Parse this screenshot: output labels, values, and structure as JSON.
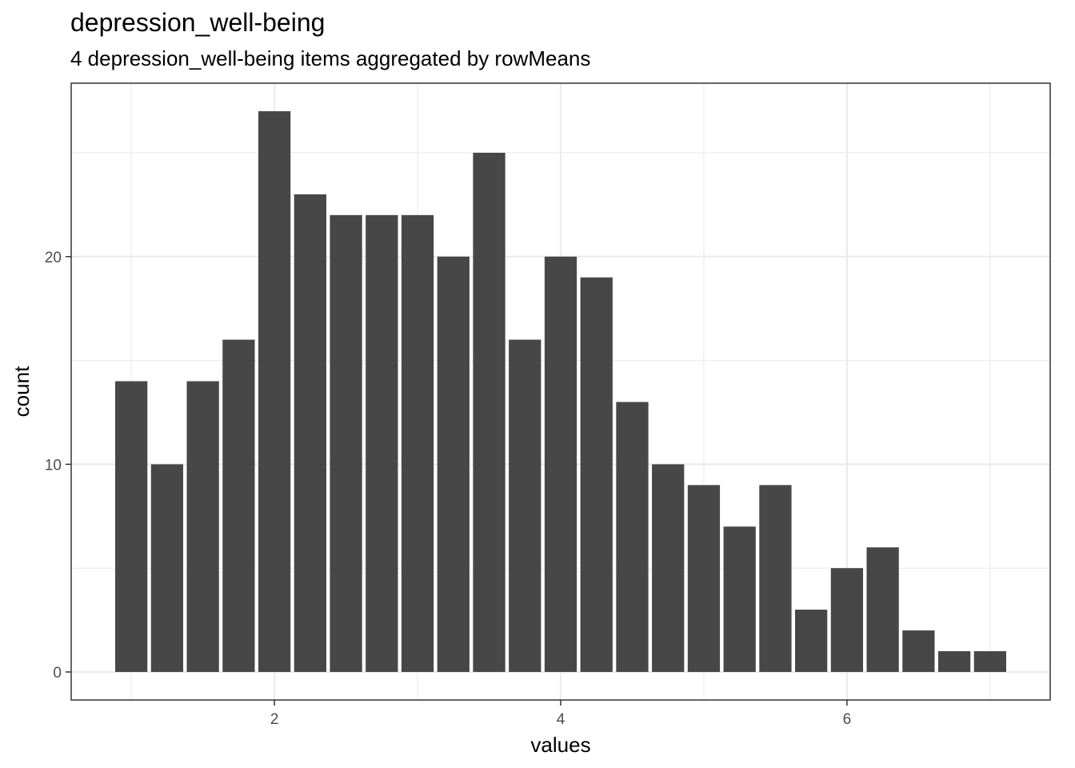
{
  "title": "depression_well-being",
  "subtitle": "4 depression_well-being items aggregated by rowMeans",
  "chart_data": {
    "type": "bar",
    "title": "depression_well-being",
    "subtitle": "4 depression_well-being items aggregated by rowMeans",
    "xlabel": "values",
    "ylabel": "count",
    "x": [
      1.0,
      1.25,
      1.5,
      1.75,
      2.0,
      2.25,
      2.5,
      2.75,
      3.0,
      3.25,
      3.5,
      3.75,
      4.0,
      4.25,
      4.5,
      4.75,
      5.0,
      5.25,
      5.5,
      5.75,
      6.0,
      6.25,
      6.5,
      6.75,
      7.0
    ],
    "values": [
      14,
      10,
      14,
      16,
      27,
      23,
      22,
      22,
      22,
      20,
      25,
      16,
      20,
      19,
      13,
      10,
      9,
      7,
      9,
      3,
      5,
      6,
      2,
      1,
      1
    ],
    "xlim": [
      0.58,
      7.42
    ],
    "ylim": [
      -1.35,
      28.35
    ],
    "xticks": [
      2,
      4,
      6
    ],
    "xtick_labels": [
      "2",
      "4",
      "6"
    ],
    "yticks": [
      0,
      10,
      20
    ],
    "ytick_labels": [
      "0",
      "10",
      "20"
    ],
    "grid": true,
    "bar_color": "#474747",
    "panel_border_color": "#333333",
    "gridline_color": "#ebebeb"
  }
}
